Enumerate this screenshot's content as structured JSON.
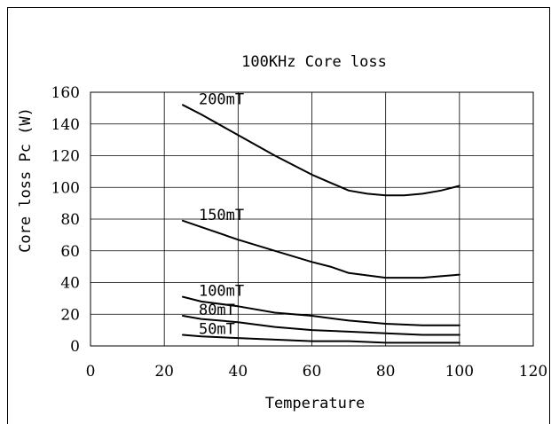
{
  "chart_data": {
    "type": "line",
    "title": "100KHz Core loss",
    "xlabel": "Temperature",
    "ylabel": "Core loss Pc (W)",
    "xlim": [
      0,
      120
    ],
    "ylim": [
      0,
      160
    ],
    "xticks": [
      0,
      20,
      40,
      60,
      80,
      100,
      120
    ],
    "yticks": [
      0,
      20,
      40,
      60,
      80,
      100,
      120,
      140,
      160
    ],
    "grid": true,
    "series": [
      {
        "name": "200mT",
        "x": [
          25,
          30,
          40,
          50,
          60,
          65,
          70,
          75,
          80,
          85,
          90,
          95,
          100
        ],
        "y": [
          152,
          146,
          133,
          120,
          108,
          103,
          98,
          96,
          95,
          95,
          96,
          98,
          101
        ]
      },
      {
        "name": "150mT",
        "x": [
          25,
          30,
          40,
          50,
          60,
          65,
          70,
          80,
          90,
          95,
          100
        ],
        "y": [
          79,
          75,
          67,
          60,
          53,
          50,
          46,
          43,
          43,
          44,
          45
        ]
      },
      {
        "name": "100mT",
        "x": [
          25,
          30,
          40,
          50,
          60,
          70,
          80,
          90,
          100
        ],
        "y": [
          31,
          28,
          25,
          21,
          19,
          16,
          14,
          13,
          13
        ]
      },
      {
        "name": "80mT",
        "x": [
          25,
          30,
          40,
          50,
          60,
          70,
          80,
          90,
          100
        ],
        "y": [
          19,
          17,
          15,
          12,
          10,
          9,
          8,
          7,
          7
        ]
      },
      {
        "name": "50mT",
        "x": [
          25,
          30,
          40,
          50,
          60,
          70,
          80,
          90,
          100
        ],
        "y": [
          7,
          6,
          5,
          4,
          3,
          3,
          2,
          2,
          2
        ]
      }
    ]
  }
}
